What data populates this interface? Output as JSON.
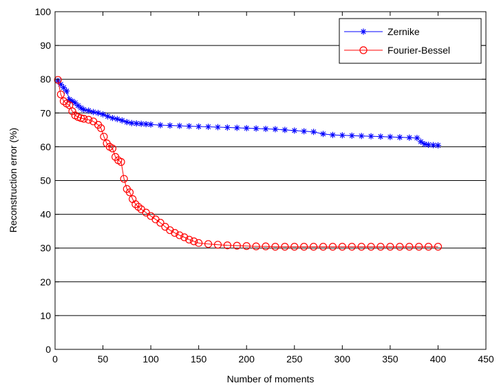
{
  "chart_data": {
    "type": "line",
    "title": "",
    "xlabel": "Number of moments",
    "ylabel": "Reconstruction error (%)",
    "xlim": [
      0,
      450
    ],
    "ylim": [
      0,
      100
    ],
    "xticks": [
      0,
      50,
      100,
      150,
      200,
      250,
      300,
      350,
      400,
      450
    ],
    "yticks": [
      0,
      10,
      20,
      30,
      40,
      50,
      60,
      70,
      80,
      90,
      100
    ],
    "grid": "horizontal",
    "legend_position": "top-right",
    "series": [
      {
        "name": "Zernike",
        "color": "#0000ff",
        "marker": "asterisk",
        "points": [
          [
            3,
            79.5
          ],
          [
            6,
            78.5
          ],
          [
            9,
            77.5
          ],
          [
            12,
            76.5
          ],
          [
            15,
            74
          ],
          [
            18,
            73.5
          ],
          [
            21,
            73
          ],
          [
            24,
            72.2
          ],
          [
            27,
            71.5
          ],
          [
            30,
            71
          ],
          [
            35,
            70.7
          ],
          [
            40,
            70.3
          ],
          [
            45,
            70
          ],
          [
            50,
            69.6
          ],
          [
            55,
            69
          ],
          [
            60,
            68.5
          ],
          [
            65,
            68.2
          ],
          [
            70,
            67.8
          ],
          [
            75,
            67.3
          ],
          [
            80,
            67
          ],
          [
            85,
            66.9
          ],
          [
            90,
            66.8
          ],
          [
            95,
            66.7
          ],
          [
            100,
            66.6
          ],
          [
            110,
            66.4
          ],
          [
            120,
            66.3
          ],
          [
            130,
            66.2
          ],
          [
            140,
            66.1
          ],
          [
            150,
            66
          ],
          [
            160,
            65.9
          ],
          [
            170,
            65.8
          ],
          [
            180,
            65.7
          ],
          [
            190,
            65.6
          ],
          [
            200,
            65.5
          ],
          [
            210,
            65.4
          ],
          [
            220,
            65.3
          ],
          [
            230,
            65.2
          ],
          [
            240,
            65
          ],
          [
            250,
            64.8
          ],
          [
            260,
            64.6
          ],
          [
            270,
            64.4
          ],
          [
            280,
            63.8
          ],
          [
            290,
            63.5
          ],
          [
            300,
            63.4
          ],
          [
            310,
            63.3
          ],
          [
            320,
            63.2
          ],
          [
            330,
            63.1
          ],
          [
            340,
            63
          ],
          [
            350,
            62.9
          ],
          [
            360,
            62.8
          ],
          [
            370,
            62.7
          ],
          [
            378,
            62.6
          ],
          [
            382,
            61.5
          ],
          [
            386,
            60.8
          ],
          [
            390,
            60.6
          ],
          [
            395,
            60.5
          ],
          [
            400,
            60.4
          ]
        ]
      },
      {
        "name": "Fourier-Bessel",
        "color": "#ff0000",
        "marker": "circle",
        "points": [
          [
            3,
            79.8
          ],
          [
            6,
            75.5
          ],
          [
            9,
            73.5
          ],
          [
            12,
            72.8
          ],
          [
            15,
            72.3
          ],
          [
            18,
            70.5
          ],
          [
            21,
            69.3
          ],
          [
            24,
            68.8
          ],
          [
            27,
            68.5
          ],
          [
            30,
            68.3
          ],
          [
            35,
            68
          ],
          [
            40,
            67.5
          ],
          [
            45,
            66.5
          ],
          [
            48,
            65.5
          ],
          [
            51,
            63
          ],
          [
            54,
            61
          ],
          [
            57,
            60
          ],
          [
            60,
            59.5
          ],
          [
            63,
            57
          ],
          [
            66,
            56
          ],
          [
            69,
            55.5
          ],
          [
            72,
            50.5
          ],
          [
            75,
            47.5
          ],
          [
            78,
            46.5
          ],
          [
            81,
            44.5
          ],
          [
            84,
            43
          ],
          [
            87,
            42.2
          ],
          [
            90,
            41.5
          ],
          [
            95,
            40.5
          ],
          [
            100,
            39.5
          ],
          [
            105,
            38.5
          ],
          [
            110,
            37.5
          ],
          [
            115,
            36.3
          ],
          [
            120,
            35.3
          ],
          [
            125,
            34.5
          ],
          [
            130,
            33.8
          ],
          [
            135,
            33.2
          ],
          [
            140,
            32.5
          ],
          [
            145,
            32
          ],
          [
            150,
            31.5
          ],
          [
            160,
            31.2
          ],
          [
            170,
            31
          ],
          [
            180,
            30.8
          ],
          [
            190,
            30.7
          ],
          [
            200,
            30.6
          ],
          [
            210,
            30.5
          ],
          [
            220,
            30.5
          ],
          [
            230,
            30.4
          ],
          [
            240,
            30.4
          ],
          [
            250,
            30.4
          ],
          [
            260,
            30.4
          ],
          [
            270,
            30.4
          ],
          [
            280,
            30.4
          ],
          [
            290,
            30.4
          ],
          [
            300,
            30.4
          ],
          [
            310,
            30.4
          ],
          [
            320,
            30.4
          ],
          [
            330,
            30.4
          ],
          [
            340,
            30.4
          ],
          [
            350,
            30.4
          ],
          [
            360,
            30.4
          ],
          [
            370,
            30.4
          ],
          [
            380,
            30.4
          ],
          [
            390,
            30.4
          ],
          [
            400,
            30.4
          ]
        ]
      }
    ]
  }
}
